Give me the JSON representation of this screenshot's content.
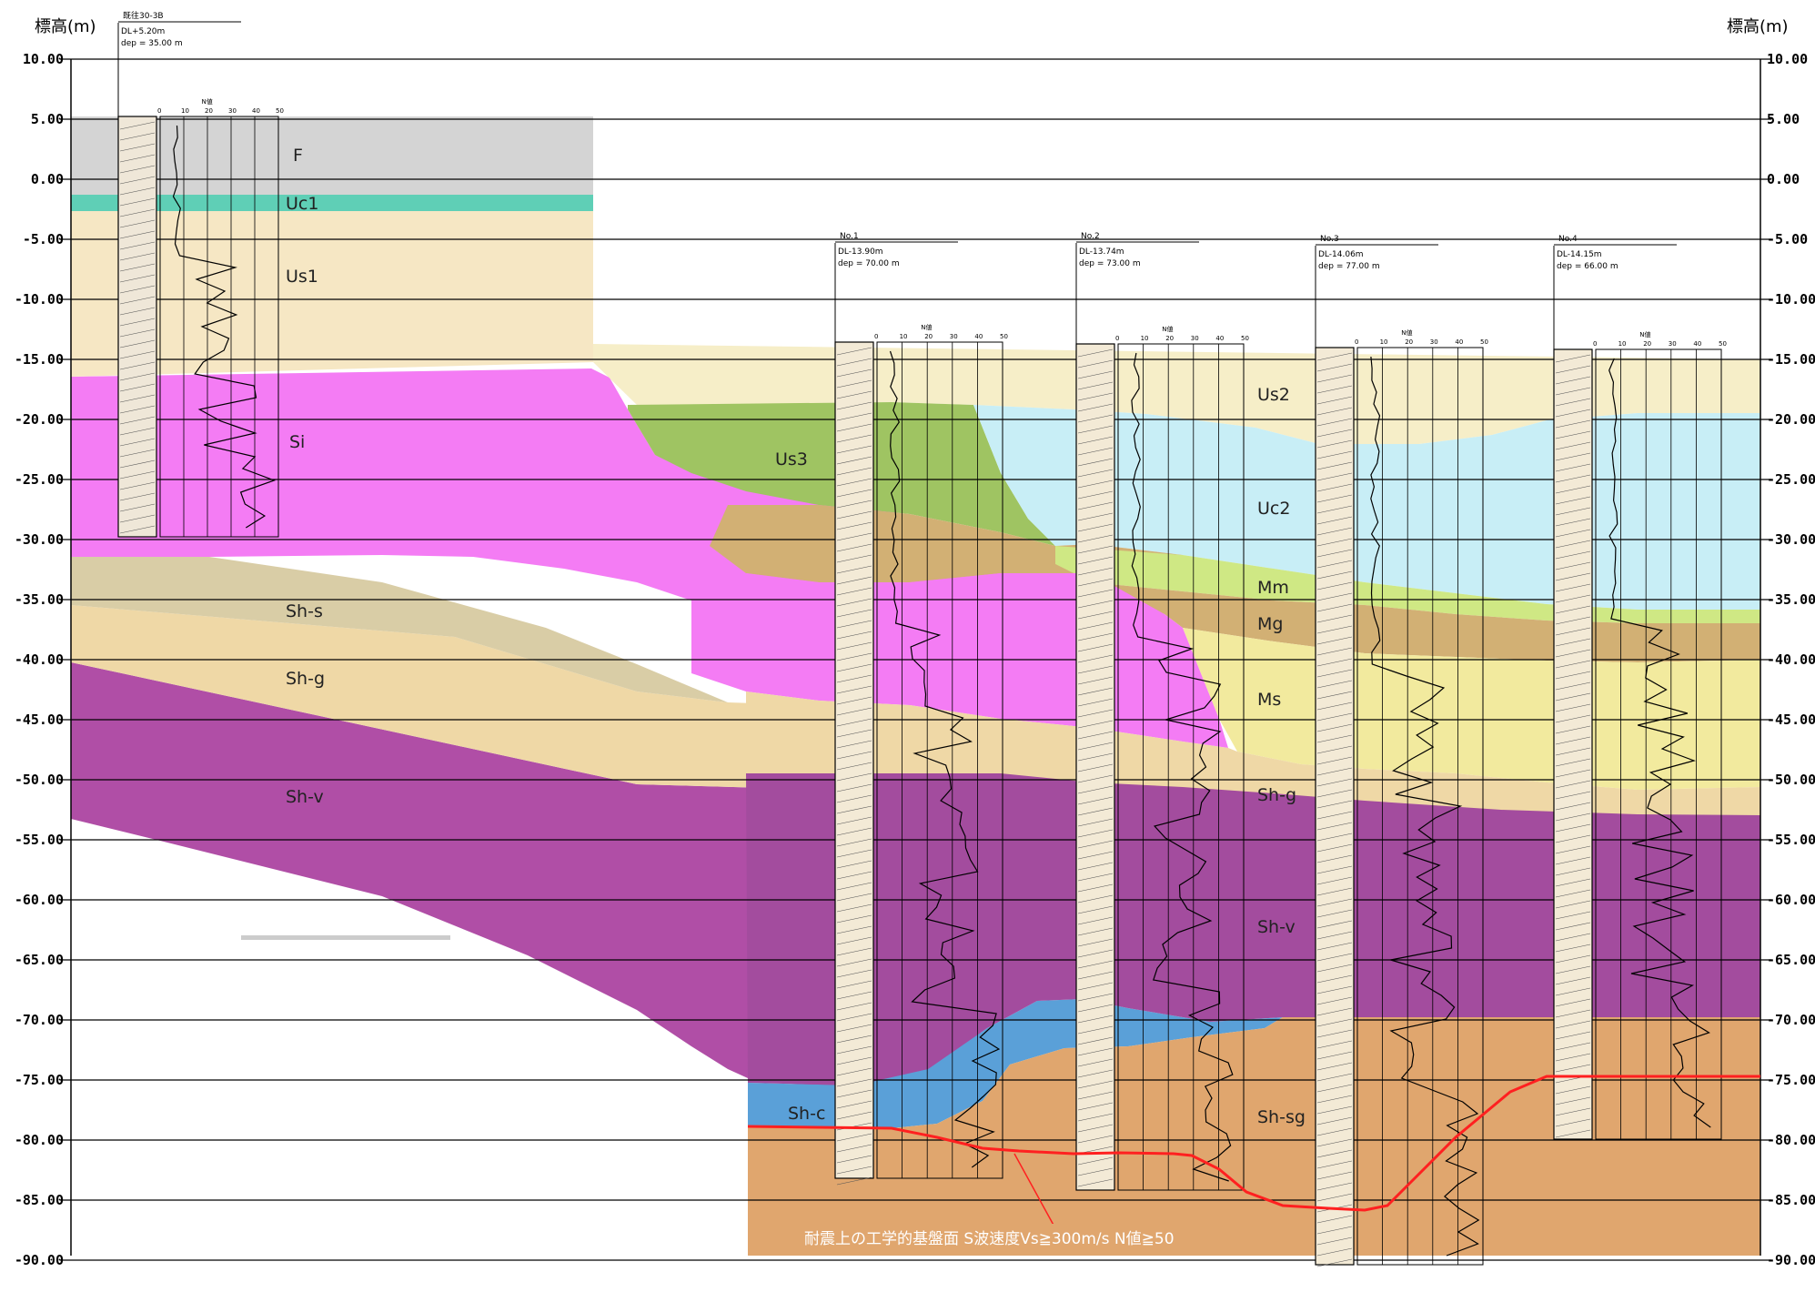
{
  "axis": {
    "label_left": "標高(m)",
    "label_right": "標高(m)",
    "ticks": [
      "10.00",
      "5.00",
      "0.00",
      "-5.00",
      "-10.00",
      "-15.00",
      "-20.00",
      "-25.00",
      "-30.00",
      "-35.00",
      "-40.00",
      "-45.00",
      "-50.00",
      "-55.00",
      "-60.00",
      "-65.00",
      "-70.00",
      "-75.00",
      "-80.00",
      "-85.00",
      "-90.00"
    ],
    "range": [
      -92,
      10
    ],
    "tick_step": 5
  },
  "layers": [
    {
      "id": "F",
      "label": "F",
      "color": "#d4d4d4"
    },
    {
      "id": "Uc1",
      "label": "Uc1",
      "color": "#5fcfb6"
    },
    {
      "id": "Us1",
      "label": "Us1",
      "color": "#f6e7c4"
    },
    {
      "id": "Si",
      "label": "Si",
      "color": "#f47cf4"
    },
    {
      "id": "Sh-s",
      "label": "Sh-s",
      "color": "#d9cda6"
    },
    {
      "id": "Sh-g",
      "label": "Sh-g",
      "color": "#efd8a6"
    },
    {
      "id": "Sh-v",
      "label": "Sh-v",
      "color": "#b04ea6"
    },
    {
      "id": "Us3",
      "label": "Us3",
      "color": "#9fc462"
    },
    {
      "id": "Us2",
      "label": "Us2",
      "color": "#f6eec8"
    },
    {
      "id": "Uc2",
      "label": "Uc2",
      "color": "#c8eef6"
    },
    {
      "id": "Mm",
      "label": "Mm",
      "color": "#cfe884"
    },
    {
      "id": "Mg",
      "label": "Mg",
      "color": "#d2b074"
    },
    {
      "id": "Ms",
      "label": "Ms",
      "color": "#f2ea9e"
    },
    {
      "id": "Sh-g2",
      "label": "Sh-g",
      "color": "#efd8a6"
    },
    {
      "id": "Sh-v2",
      "label": "Sh-v",
      "color": "#a34c9e"
    },
    {
      "id": "Sh-c",
      "label": "Sh-c",
      "color": "#5aa0d8"
    },
    {
      "id": "Sh-sg",
      "label": "Sh-sg",
      "color": "#e0a66e"
    }
  ],
  "boreholes": [
    {
      "name": "既往30-3B",
      "dl": "DL+5.20m",
      "dep": "dep = 35.00 m",
      "n_label": "N値",
      "n_ticks": [
        "0",
        "10",
        "20",
        "30",
        "40",
        "50"
      ]
    },
    {
      "name": "No.1",
      "dl": "DL-13.90m",
      "dep": "dep = 70.00 m",
      "n_label": "N値",
      "n_ticks": [
        "0",
        "10",
        "20",
        "30",
        "40",
        "50"
      ]
    },
    {
      "name": "No.2",
      "dl": "DL-13.74m",
      "dep": "dep = 73.00 m",
      "n_label": "N値",
      "n_ticks": [
        "0",
        "10",
        "20",
        "30",
        "40",
        "50"
      ]
    },
    {
      "name": "No.3",
      "dl": "DL-14.06m",
      "dep": "dep = 77.00 m",
      "n_label": "N値",
      "n_ticks": [
        "0",
        "10",
        "20",
        "30",
        "40",
        "50"
      ]
    },
    {
      "name": "No.4",
      "dl": "DL-14.15m",
      "dep": "dep = 66.00 m",
      "n_label": "N値",
      "n_ticks": [
        "0",
        "10",
        "20",
        "30",
        "40",
        "50"
      ]
    }
  ],
  "annotation": {
    "text": "耐震上の工学的基盤面  S波速度Vs≧300m/s N値≧50",
    "line_color": "#ff2020"
  }
}
